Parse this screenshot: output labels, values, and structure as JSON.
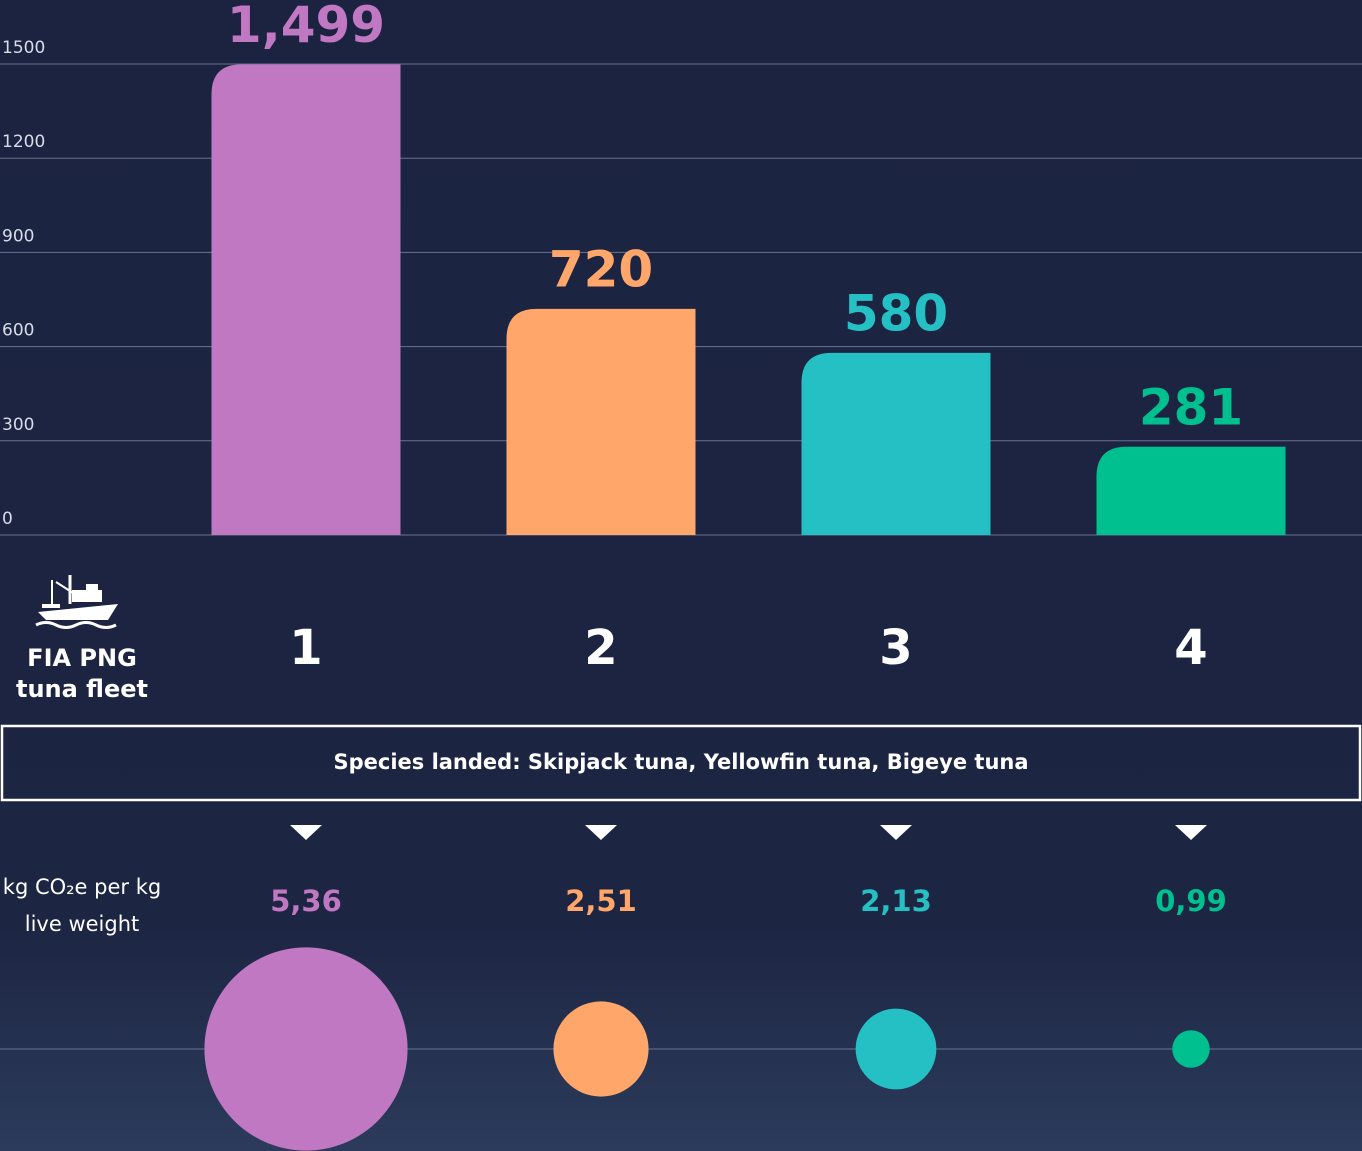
{
  "chart_data": [
    {
      "type": "bar",
      "categories": [
        "1",
        "2",
        "3",
        "4"
      ],
      "values": [
        1499,
        720,
        580,
        281
      ],
      "value_labels": [
        "1,499",
        "720",
        "580",
        "281"
      ],
      "colors": [
        "#c078c2",
        "#ffa66b",
        "#25c0c4",
        "#00c08f"
      ],
      "ylim": [
        0,
        1500
      ],
      "yticks": [
        0,
        300,
        600,
        900,
        1200,
        1500
      ],
      "grid": true
    },
    {
      "type": "bubble",
      "categories": [
        "1",
        "2",
        "3",
        "4"
      ],
      "values": [
        5.36,
        2.51,
        2.13,
        0.99
      ],
      "value_labels": [
        "5,36",
        "2,51",
        "2,13",
        "0,99"
      ],
      "colors": [
        "#c078c2",
        "#ffa66b",
        "#25c0c4",
        "#00c08f"
      ]
    }
  ],
  "fleet_label": [
    "FIA PNG",
    "tuna fleet"
  ],
  "species_banner": "Species landed: Skipjack tuna, Yellowfin tuna, Bigeye tuna",
  "unit_label": [
    "kg CO₂e per kg",
    "live weight"
  ]
}
